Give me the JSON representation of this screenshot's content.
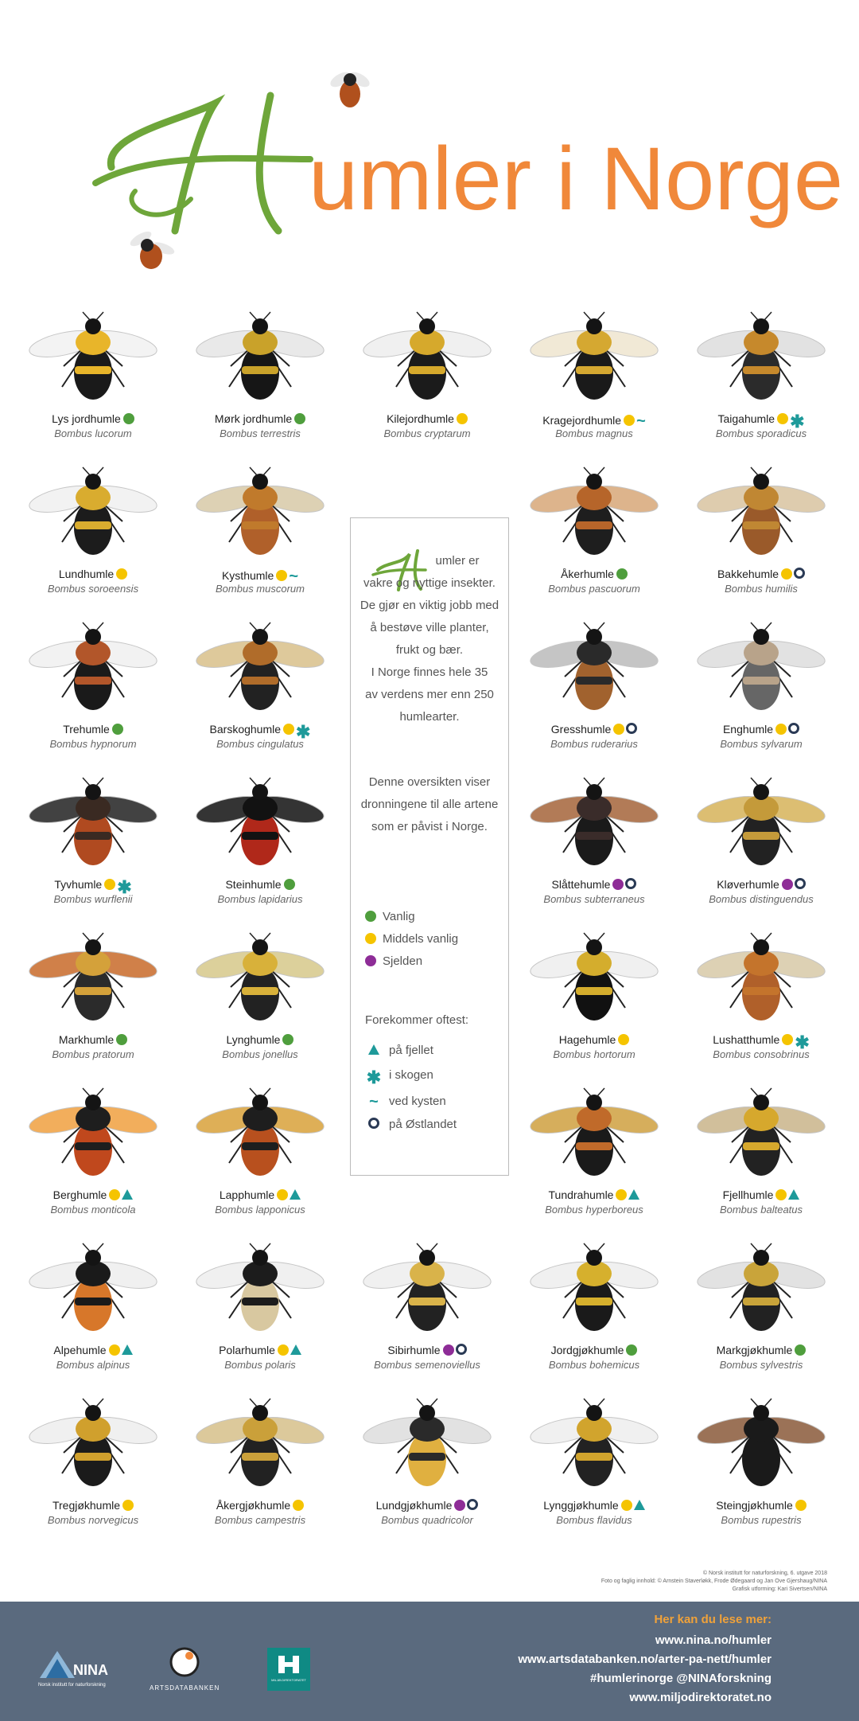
{
  "title": {
    "initial": "H",
    "rest": "umler i Norge"
  },
  "colors": {
    "common": "#4f9e3d",
    "medium": "#f5c400",
    "rare": "#8e2d97",
    "teal": "#1e9a9a",
    "ring": "#2a3a55",
    "orange": "#f0883a",
    "green_script": "#6ea63a"
  },
  "bees": [
    {
      "name": "Lys jordhumle",
      "latin": "Bombus lucorum",
      "freq": "common",
      "marks": []
    },
    {
      "name": "Mørk jordhumle",
      "latin": "Bombus terrestris",
      "freq": "common",
      "marks": []
    },
    {
      "name": "Kilejordhumle",
      "latin": "Bombus cryptarum",
      "freq": "medium",
      "marks": []
    },
    {
      "name": "Kragejordhumle",
      "latin": "Bombus magnus",
      "freq": "medium",
      "marks": [
        "tilde"
      ]
    },
    {
      "name": "Taigahumle",
      "latin": "Bombus sporadicus",
      "freq": "medium",
      "marks": [
        "star"
      ]
    },
    {
      "name": "Lundhumle",
      "latin": "Bombus soroeensis",
      "freq": "medium",
      "marks": []
    },
    {
      "name": "Kysthumle",
      "latin": "Bombus muscorum",
      "freq": "medium",
      "marks": [
        "tilde"
      ]
    },
    {
      "name": "Åkerhumle",
      "latin": "Bombus pascuorum",
      "freq": "common",
      "marks": []
    },
    {
      "name": "Bakkehumle",
      "latin": "Bombus humilis",
      "freq": "medium",
      "marks": [
        "ring"
      ]
    },
    {
      "name": "Trehumle",
      "latin": "Bombus hypnorum",
      "freq": "common",
      "marks": []
    },
    {
      "name": "Barskoghumle",
      "latin": "Bombus cingulatus",
      "freq": "medium",
      "marks": [
        "star"
      ]
    },
    {
      "name": "Gresshumle",
      "latin": "Bombus ruderarius",
      "freq": "medium",
      "marks": [
        "ring"
      ]
    },
    {
      "name": "Enghumle",
      "latin": "Bombus sylvarum",
      "freq": "medium",
      "marks": [
        "ring"
      ]
    },
    {
      "name": "Tyvhumle",
      "latin": "Bombus wurflenii",
      "freq": "medium",
      "marks": [
        "star"
      ]
    },
    {
      "name": "Steinhumle",
      "latin": "Bombus lapidarius",
      "freq": "common",
      "marks": []
    },
    {
      "name": "Slåttehumle",
      "latin": "Bombus subterraneus",
      "freq": "rare",
      "marks": [
        "ring"
      ]
    },
    {
      "name": "Kløverhumle",
      "latin": "Bombus distinguendus",
      "freq": "rare",
      "marks": [
        "ring"
      ]
    },
    {
      "name": "Markhumle",
      "latin": "Bombus pratorum",
      "freq": "common",
      "marks": []
    },
    {
      "name": "Lynghumle",
      "latin": "Bombus jonellus",
      "freq": "common",
      "marks": []
    },
    {
      "name": "Hagehumle",
      "latin": "Bombus hortorum",
      "freq": "medium",
      "marks": []
    },
    {
      "name": "Lushatthumle",
      "latin": "Bombus consobrinus",
      "freq": "medium",
      "marks": [
        "star"
      ]
    },
    {
      "name": "Berghumle",
      "latin": "Bombus monticola",
      "freq": "medium",
      "marks": [
        "tri"
      ]
    },
    {
      "name": "Lapphumle",
      "latin": "Bombus lapponicus",
      "freq": "medium",
      "marks": [
        "tri"
      ]
    },
    {
      "name": "Tundrahumle",
      "latin": "Bombus hyperboreus",
      "freq": "medium",
      "marks": [
        "tri"
      ]
    },
    {
      "name": "Fjellhumle",
      "latin": "Bombus balteatus",
      "freq": "medium",
      "marks": [
        "tri"
      ]
    },
    {
      "name": "Alpehumle",
      "latin": "Bombus alpinus",
      "freq": "medium",
      "marks": [
        "tri"
      ]
    },
    {
      "name": "Polarhumle",
      "latin": "Bombus polaris",
      "freq": "medium",
      "marks": [
        "tri"
      ]
    },
    {
      "name": "Sibirhumle",
      "latin": "Bombus semenoviellus",
      "freq": "rare",
      "marks": [
        "ring"
      ]
    },
    {
      "name": "Jordgjøkhumle",
      "latin": "Bombus bohemicus",
      "freq": "common",
      "marks": []
    },
    {
      "name": "Markgjøkhumle",
      "latin": "Bombus sylvestris",
      "freq": "common",
      "marks": []
    },
    {
      "name": "Tregjøkhumle",
      "latin": "Bombus norvegicus",
      "freq": "medium",
      "marks": []
    },
    {
      "name": "Åkergjøkhumle",
      "latin": "Bombus campestris",
      "freq": "medium",
      "marks": []
    },
    {
      "name": "Lundgjøkhumle",
      "latin": "Bombus quadricolor",
      "freq": "rare",
      "marks": [
        "ring"
      ]
    },
    {
      "name": "Lynggjøkhumle",
      "latin": "Bombus flavidus",
      "freq": "medium",
      "marks": [
        "tri"
      ]
    },
    {
      "name": "Steingjøkhumle",
      "latin": "Bombus rupestris",
      "freq": "medium",
      "marks": []
    }
  ],
  "info": {
    "intro_initial": "H",
    "intro_lines": [
      "umler er",
      "vakre og nyttige insekter.",
      "De gjør en viktig jobb med",
      "å bestøve ville planter,",
      "frukt og bær.",
      "I Norge finnes hele 35",
      "av verdens mer enn 250",
      "humlearter."
    ],
    "overview_lines": [
      "Denne oversikten viser",
      "dronningene til alle artene",
      "som er påvist i Norge."
    ],
    "freq_legend": [
      {
        "key": "common",
        "label": "Vanlig"
      },
      {
        "key": "medium",
        "label": "Middels vanlig"
      },
      {
        "key": "rare",
        "label": "Sjelden"
      }
    ],
    "occurrence_heading": "Forekommer oftest:",
    "occurrence_legend": [
      {
        "icon": "tri",
        "label": "på fjellet"
      },
      {
        "icon": "star",
        "label": "i skogen"
      },
      {
        "icon": "tilde",
        "label": "ved kysten"
      },
      {
        "icon": "ring",
        "label": "på Østlandet"
      }
    ]
  },
  "credits": [
    "© Norsk institutt for naturforskning, 6. utgave 2018",
    "Foto og faglig innhold: © Arnstein Staverløkk, Frode Ødegaard og Jan Ove Gjershaug/NINA",
    "Grafisk utforming: Kari Sivertsen/NINA"
  ],
  "footer": {
    "heading": "Her kan du lese mer:",
    "links": [
      "www.nina.no/humler",
      "www.artsdatabanken.no/arter-pa-nett/humler",
      "#humlerinorge   @NINAforskning",
      "www.miljodirektoratet.no"
    ],
    "logos": [
      {
        "name": "NINA",
        "sub": "Norsk institutt for naturforskning",
        "icon": "nina-triangle-icon"
      },
      {
        "name": "ARTSDATABANKEN",
        "icon": "artsdatabanken-circle-icon"
      },
      {
        "name": "MILJØ-DIREKTORATET",
        "icon": "miljodirektoratet-square-icon"
      }
    ]
  }
}
